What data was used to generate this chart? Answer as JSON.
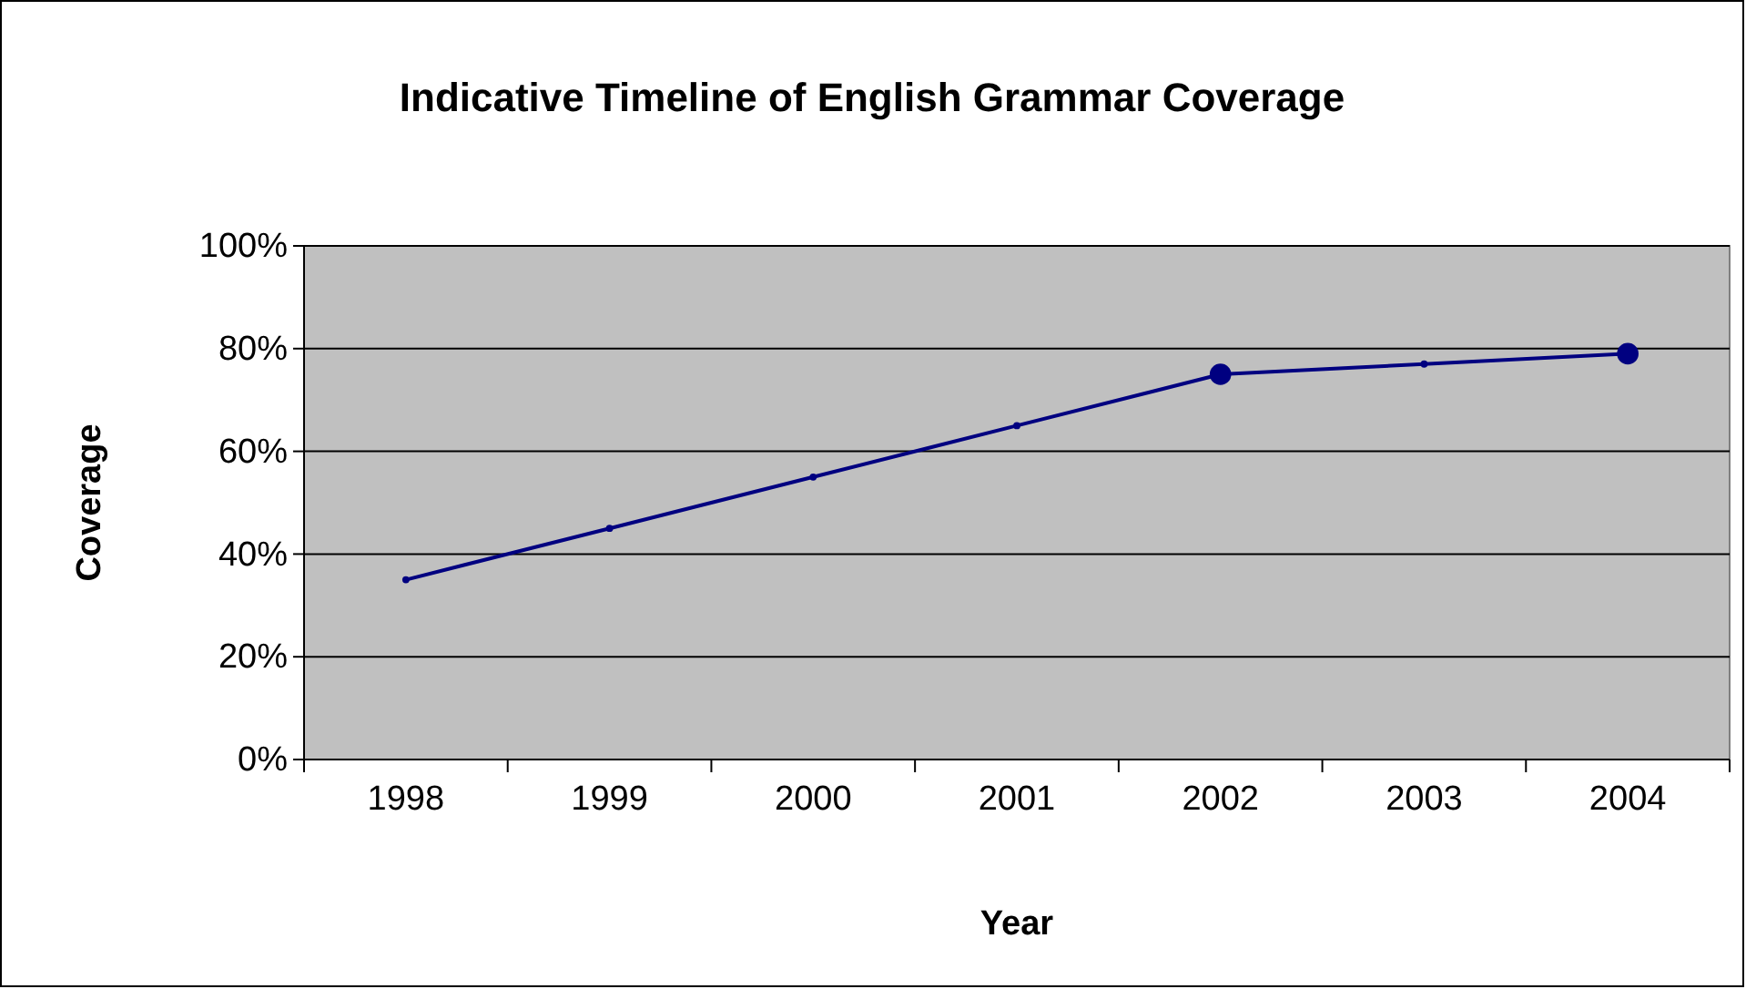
{
  "chart_data": {
    "type": "line",
    "title": "Indicative Timeline of English Grammar Coverage",
    "xlabel": "Year",
    "ylabel": "Coverage",
    "categories": [
      "1998",
      "1999",
      "2000",
      "2001",
      "2002",
      "2003",
      "2004"
    ],
    "series": [
      {
        "color": "#000080",
        "values": [
          35,
          45,
          55,
          65,
          75,
          77,
          79
        ],
        "marker": "circle"
      },
      {
        "type": "scatter",
        "color": "#000080",
        "values": [
          null,
          null,
          null,
          null,
          75,
          null,
          79
        ],
        "marker": "circle"
      }
    ],
    "ylim": [
      0,
      100
    ],
    "yticks": [
      {
        "value": 0,
        "label": "0%"
      },
      {
        "value": 20,
        "label": "20%"
      },
      {
        "value": 40,
        "label": "40%"
      },
      {
        "value": 60,
        "label": "60%"
      },
      {
        "value": 80,
        "label": "80%"
      },
      {
        "value": 100,
        "label": "100%"
      }
    ],
    "grid": "y"
  }
}
